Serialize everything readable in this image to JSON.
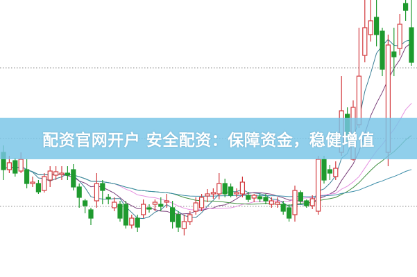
{
  "banner": {
    "text": "配资官网开户 安全配资：保障资金，稳健增值"
  },
  "colors": {
    "up": "#d2383c",
    "down": "#1f9a2e",
    "banner": "#78c4e6",
    "grid": "#888888"
  },
  "chart_data": {
    "type": "candlestick",
    "title": "",
    "xlabel": "",
    "ylabel": "",
    "ylim": [
      0,
      40
    ],
    "grid": "dotted horizontal",
    "grid_levels": [
      30.2,
      20,
      10.2
    ],
    "candles_ohlc": [
      [
        18,
        19,
        14,
        15.5
      ],
      [
        15.5,
        17.5,
        15,
        16.5
      ],
      [
        16.8,
        17.2,
        14.5,
        15
      ],
      [
        15.3,
        18,
        15,
        17
      ],
      [
        15.5,
        17,
        12.8,
        13.5
      ],
      [
        13.5,
        14.5,
        13,
        13.7
      ],
      [
        13.5,
        14,
        12,
        12.3
      ],
      [
        12.5,
        15,
        12.2,
        14.5
      ],
      [
        14,
        16,
        13,
        15.3
      ],
      [
        14.7,
        16,
        14,
        15.2
      ],
      [
        14.8,
        16,
        14,
        15
      ],
      [
        15,
        16,
        14,
        14.7
      ],
      [
        15.5,
        16.3,
        12.5,
        13
      ],
      [
        13,
        13.5,
        10,
        11.5
      ],
      [
        11,
        11.3,
        9.2,
        10.3
      ],
      [
        9.7,
        10,
        7.5,
        8.5
      ],
      [
        11,
        15,
        10,
        13.5
      ],
      [
        13.5,
        14,
        10.5,
        12.5
      ],
      [
        11.5,
        12,
        10.5,
        11.3
      ],
      [
        10,
        11.5,
        9.5,
        10.8
      ],
      [
        10.5,
        11,
        8,
        8.5
      ],
      [
        10.5,
        11,
        7,
        7.5
      ],
      [
        7.5,
        9,
        7,
        8.5
      ],
      [
        8.5,
        9,
        6.5,
        7.2
      ],
      [
        9,
        11.2,
        8.5,
        10.5
      ],
      [
        10,
        10.5,
        9.3,
        9.8
      ],
      [
        10.5,
        11.2,
        9.5,
        10.8
      ],
      [
        10.5,
        11.5,
        9.5,
        10.2
      ],
      [
        10.8,
        12,
        10,
        11
      ],
      [
        10,
        11,
        7,
        8
      ],
      [
        9,
        9.5,
        6.5,
        7.2
      ],
      [
        7,
        9,
        6,
        8
      ],
      [
        8,
        9.5,
        7.5,
        9
      ],
      [
        9.5,
        11.5,
        9,
        10.7
      ],
      [
        10,
        12,
        9.5,
        11.5
      ],
      [
        11.7,
        12.7,
        10.8,
        12
      ],
      [
        12,
        12.8,
        11.3,
        12.2
      ],
      [
        12,
        15,
        11.2,
        13.5
      ],
      [
        13.5,
        14.2,
        11.5,
        12
      ],
      [
        13,
        13.5,
        11.5,
        11.8
      ],
      [
        12,
        12.8,
        11.5,
        12.2
      ],
      [
        12,
        14.5,
        11.5,
        13.7
      ],
      [
        11.8,
        12.3,
        10.8,
        11.2
      ],
      [
        11.4,
        12,
        10.8,
        11.8
      ],
      [
        11.6,
        12,
        10.8,
        11.3
      ],
      [
        11.5,
        12,
        10.5,
        11
      ],
      [
        10.5,
        11.5,
        10,
        11
      ],
      [
        10.5,
        11.5,
        10,
        10.8
      ],
      [
        10.5,
        11,
        9,
        9.5
      ],
      [
        10,
        10.5,
        8,
        8.5
      ],
      [
        9,
        13.2,
        8,
        12.5
      ],
      [
        12.2,
        12.5,
        10.5,
        11
      ],
      [
        11,
        11.2,
        10,
        10.3
      ],
      [
        10.3,
        11.8,
        9.8,
        11.3
      ],
      [
        9.5,
        17.5,
        9,
        17
      ],
      [
        17,
        17.5,
        13.5,
        14
      ],
      [
        15.5,
        16.2,
        14,
        15
      ],
      [
        14.5,
        16.7,
        14,
        15.7
      ],
      [
        18,
        29,
        17.5,
        24
      ],
      [
        23.5,
        24.5,
        19.5,
        20.5
      ],
      [
        17,
        25.5,
        16.8,
        24.5
      ],
      [
        22,
        36,
        21.5,
        29
      ],
      [
        32,
        40,
        31,
        36
      ],
      [
        35,
        40,
        34,
        37
      ],
      [
        37.5,
        40,
        33.3,
        35
      ],
      [
        35.5,
        36,
        29,
        30
      ],
      [
        18,
        35,
        16,
        33.5
      ],
      [
        32.5,
        36,
        29,
        31.8
      ],
      [
        33,
        38,
        32,
        36.5
      ],
      [
        39.5,
        40,
        37,
        38.5
      ],
      [
        36,
        40,
        30.5,
        31
      ]
    ],
    "moving_averages": [
      {
        "period": 5,
        "color": "#3a7f96"
      },
      {
        "period": 10,
        "color": "#7a3f7a"
      },
      {
        "period": 20,
        "color": "#e58ee0"
      },
      {
        "period": 30,
        "color": "#3f8f3f"
      },
      {
        "period": 60,
        "color": "#3a8ca8"
      }
    ]
  }
}
